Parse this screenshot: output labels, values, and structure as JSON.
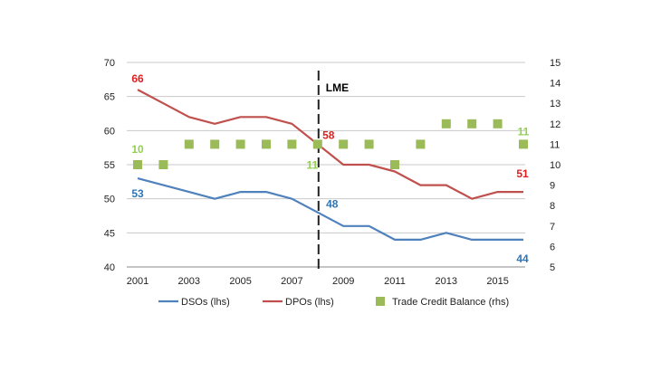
{
  "chart_data": {
    "type": "line",
    "x": [
      2001,
      2002,
      2003,
      2004,
      2005,
      2006,
      2007,
      2008,
      2009,
      2010,
      2011,
      2012,
      2013,
      2014,
      2015,
      2016
    ],
    "x_tick_labels": [
      "2001",
      "2003",
      "2005",
      "2007",
      "2009",
      "2011",
      "2013",
      "2015"
    ],
    "x_tick_values": [
      2001,
      2003,
      2005,
      2007,
      2009,
      2011,
      2013,
      2015
    ],
    "ylim_left": [
      40,
      70
    ],
    "y_ticks_left": [
      "40",
      "45",
      "50",
      "55",
      "60",
      "65",
      "70"
    ],
    "ylim_right": [
      5,
      15
    ],
    "y_ticks_right": [
      "5",
      "6",
      "7",
      "8",
      "9",
      "10",
      "11",
      "12",
      "13",
      "14",
      "15"
    ],
    "grid": true,
    "legend_position": "bottom",
    "series": [
      {
        "name": "DSOs (lhs)",
        "kind": "line",
        "axis": "left",
        "color": "#4f81bd",
        "values": [
          53,
          52,
          51,
          50,
          51,
          51,
          50,
          48,
          46,
          46,
          44,
          44,
          45,
          44,
          44,
          44
        ]
      },
      {
        "name": "DPOs (lhs)",
        "kind": "line",
        "axis": "left",
        "color": "#c0504d",
        "values": [
          66,
          64,
          62,
          61,
          62,
          62,
          61,
          58,
          55,
          55,
          54,
          52,
          52,
          50,
          51,
          51
        ]
      },
      {
        "name": "Trade Credit Balance (rhs)",
        "kind": "marker",
        "axis": "right",
        "color": "#9bbb59",
        "values": [
          10,
          10,
          11,
          11,
          11,
          11,
          11,
          11,
          11,
          11,
          10,
          11,
          12,
          12,
          12,
          11
        ]
      }
    ],
    "annotations": [
      {
        "text": "LME",
        "type": "vline",
        "x": 2008
      }
    ],
    "data_labels": [
      {
        "text": "66",
        "series": "DPOs (lhs)",
        "x": 2001,
        "color": "#e02020"
      },
      {
        "text": "58",
        "series": "DPOs (lhs)",
        "x": 2008,
        "color": "#e02020"
      },
      {
        "text": "51",
        "series": "DPOs (lhs)",
        "x": 2016,
        "color": "#e02020"
      },
      {
        "text": "53",
        "series": "DSOs (lhs)",
        "x": 2001,
        "color": "#2e75b6"
      },
      {
        "text": "48",
        "series": "DSOs (lhs)",
        "x": 2008,
        "color": "#2e75b6"
      },
      {
        "text": "44",
        "series": "DSOs (lhs)",
        "x": 2016,
        "color": "#2e75b6"
      },
      {
        "text": "10",
        "series": "Trade Credit Balance (rhs)",
        "x": 2001,
        "color": "#92d050"
      },
      {
        "text": "11",
        "series": "Trade Credit Balance (rhs)",
        "x": 2008,
        "color": "#92d050"
      },
      {
        "text": "11",
        "series": "Trade Credit Balance (rhs)",
        "x": 2016,
        "color": "#92d050"
      }
    ]
  }
}
